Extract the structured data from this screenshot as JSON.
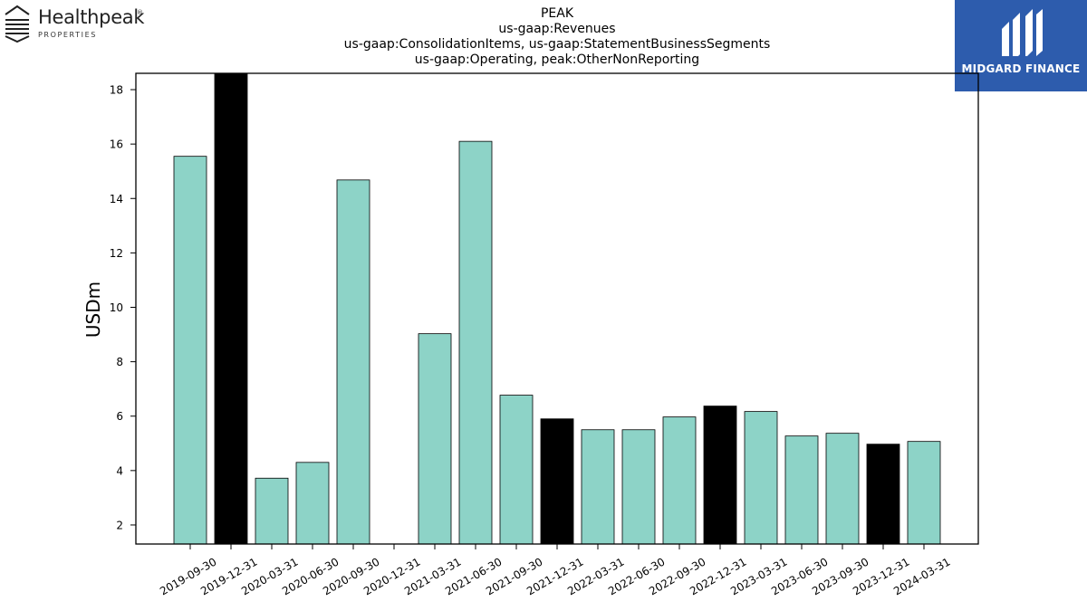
{
  "logos": {
    "left": {
      "name": "Healthpeak",
      "registered": "®",
      "sub": "PROPERTIES"
    },
    "right": {
      "name": "MIDGARD FINANCE",
      "bg_color": "#2d5cad"
    }
  },
  "colors": {
    "bar_default": "#8dd3c7",
    "bar_highlight": "#000000",
    "stroke": "#000000"
  },
  "chart_data": {
    "type": "bar",
    "title_lines": [
      "PEAK",
      "us-gaap:Revenues",
      "us-gaap:ConsolidationItems, us-gaap:StatementBusinessSegments",
      "us-gaap:Operating, peak:OtherNonReporting"
    ],
    "xlabel": "",
    "ylabel": "USDm",
    "ylim": [
      1.3,
      18.6
    ],
    "yticks": [
      2,
      4,
      6,
      8,
      10,
      12,
      14,
      16,
      18
    ],
    "grid": false,
    "categories": [
      "2019-09-30",
      "2019-12-31",
      "2020-03-31",
      "2020-06-30",
      "2020-09-30",
      "2020-12-31",
      "2021-03-31",
      "2021-06-30",
      "2021-09-30",
      "2021-12-31",
      "2022-03-31",
      "2022-06-30",
      "2022-09-30",
      "2022-12-31",
      "2023-03-31",
      "2023-06-30",
      "2023-09-30",
      "2023-12-31",
      "2024-03-31"
    ],
    "values": [
      15.55,
      18.6,
      3.72,
      4.3,
      14.68,
      null,
      9.03,
      16.1,
      6.77,
      5.9,
      5.5,
      5.5,
      5.97,
      6.37,
      6.17,
      5.27,
      5.37,
      4.97,
      5.07
    ],
    "highlight": [
      false,
      true,
      false,
      false,
      false,
      false,
      false,
      false,
      false,
      true,
      false,
      false,
      false,
      true,
      false,
      false,
      false,
      true,
      false
    ]
  }
}
